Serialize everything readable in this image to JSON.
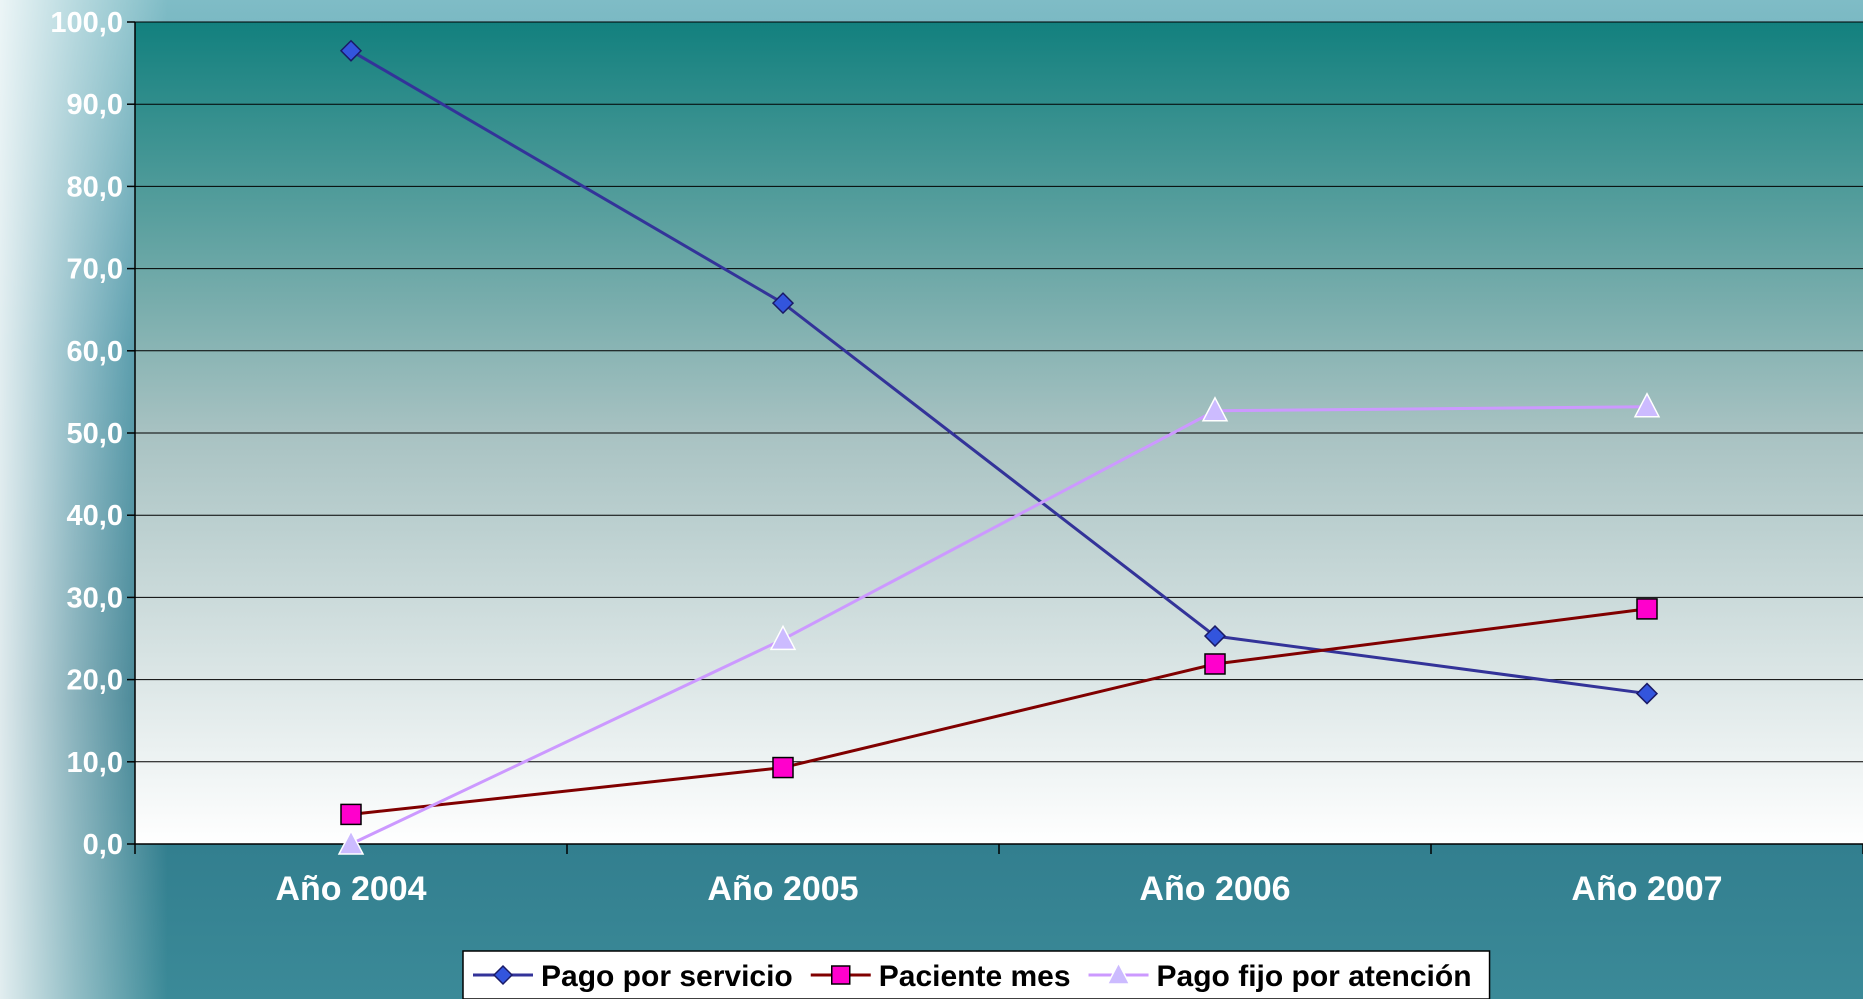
{
  "chart_data": {
    "type": "line",
    "title": "",
    "xlabel": "",
    "ylabel": "",
    "categories": [
      "Año 2004",
      "Año 2005",
      "Año 2006",
      "Año 2007"
    ],
    "y_ticks": [
      "0,0",
      "10,0",
      "20,0",
      "30,0",
      "40,0",
      "50,0",
      "60,0",
      "70,0",
      "80,0",
      "90,0",
      "100,0"
    ],
    "ylim": [
      0,
      100
    ],
    "grid": true,
    "legend_position": "bottom",
    "series": [
      {
        "name": "Pago por servicio",
        "values": [
          96.5,
          65.8,
          25.3,
          18.3
        ],
        "color": "#333399",
        "marker_color": "#3355dd",
        "marker": "diamond"
      },
      {
        "name": "Paciente mes",
        "values": [
          3.6,
          9.3,
          21.9,
          28.6
        ],
        "color": "#800000",
        "marker_color": "#ff00cc",
        "marker": "square"
      },
      {
        "name": "Pago fijo por atención",
        "values": [
          0.0,
          24.9,
          52.7,
          53.2
        ],
        "color": "#cc99ff",
        "marker_color": "#ccbbff",
        "marker": "triangle"
      }
    ]
  },
  "colors": {
    "plot_top": "#12807e",
    "plot_bottom": "#ffffff",
    "gridline": "#000000",
    "tick_label": "#ffffff"
  }
}
